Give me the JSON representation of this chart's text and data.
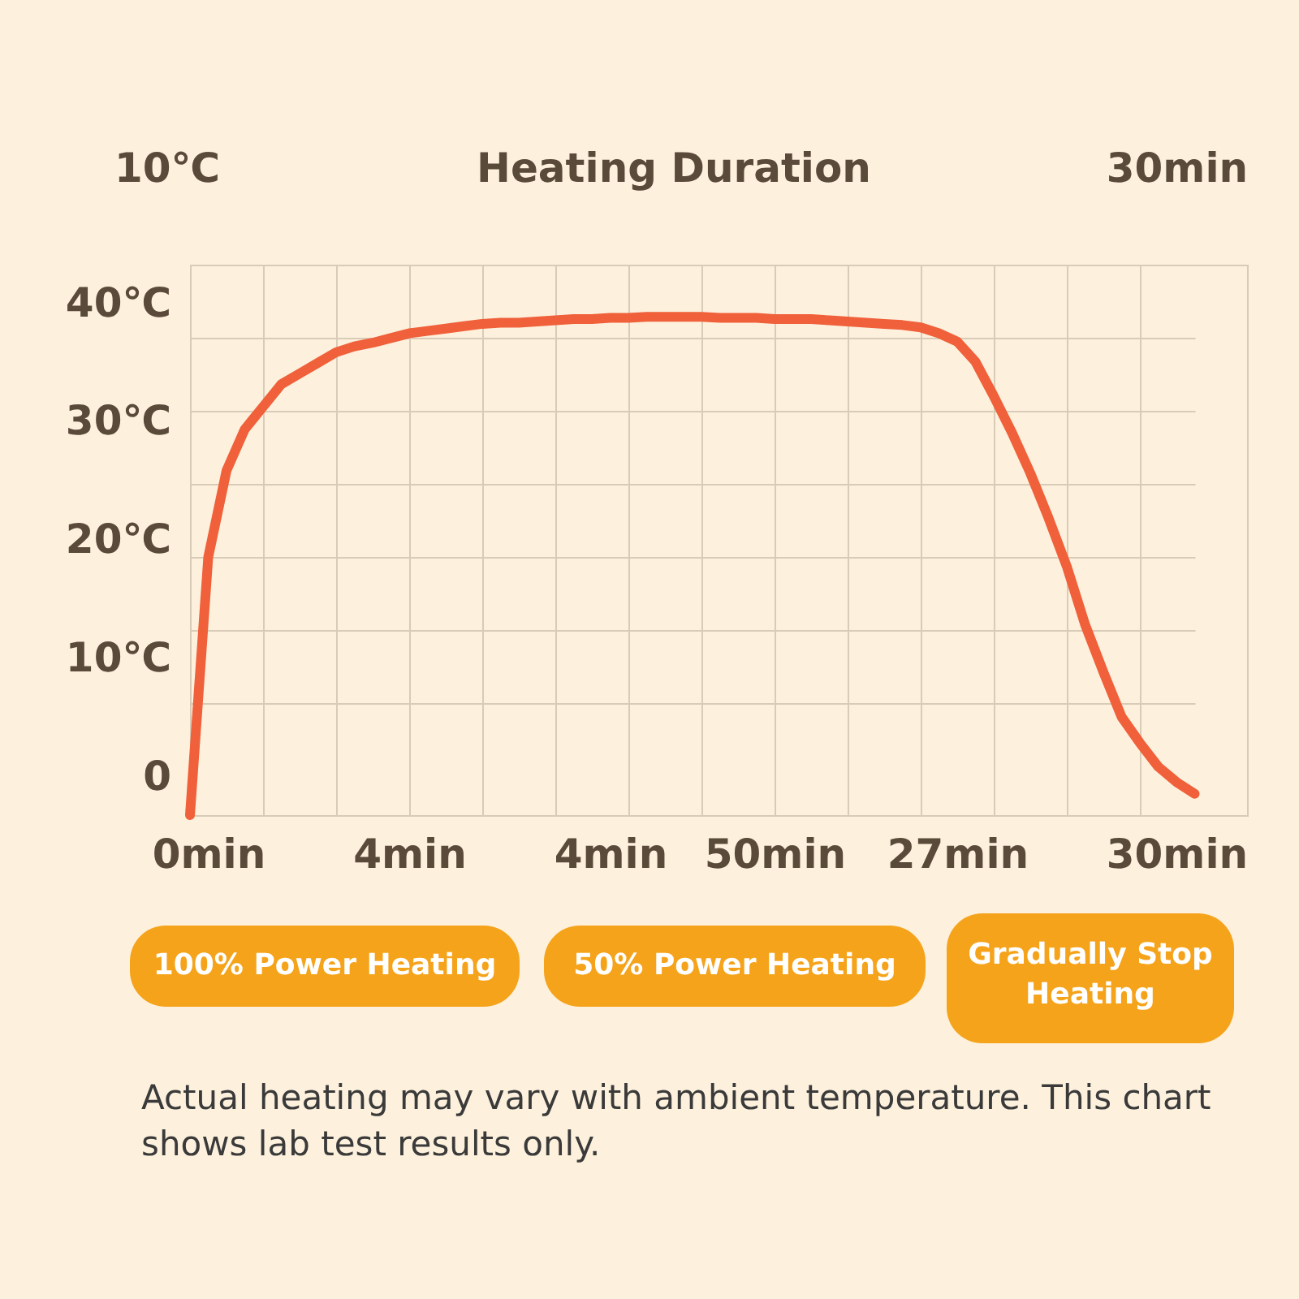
{
  "chart_data": {
    "type": "line",
    "title": "Heating Duration",
    "categories": [
      null,
      "0min",
      null,
      null,
      null,
      null,
      null,
      null,
      null,
      null,
      null,
      null,
      "4min",
      null,
      null,
      null,
      null,
      null,
      null,
      null,
      null,
      null,
      null,
      "4min",
      null,
      null,
      null,
      null,
      null,
      null,
      null,
      null,
      "50min",
      null,
      null,
      null,
      null,
      null,
      null,
      null,
      null,
      null,
      "27min",
      null,
      null,
      null,
      null,
      null,
      null,
      null,
      null,
      null,
      null,
      null,
      "30min",
      null
    ],
    "series": [
      {
        "color": "#f0603a",
        "values": [
          -3.3,
          18.5,
          25.8,
          29.3,
          31.2,
          33.1,
          34.0,
          34.9,
          35.8,
          36.3,
          36.6,
          37.0,
          37.4,
          37.6,
          37.8,
          38.0,
          38.2,
          38.3,
          38.3,
          38.4,
          38.5,
          38.6,
          38.6,
          38.7,
          38.7,
          38.8,
          38.8,
          38.8,
          38.8,
          38.7,
          38.7,
          38.7,
          38.6,
          38.6,
          38.6,
          38.5,
          38.4,
          38.3,
          38.2,
          38.1,
          37.9,
          37.4,
          36.7,
          35.0,
          32.1,
          29.0,
          25.6,
          21.8,
          17.7,
          12.8,
          8.8,
          5.0,
          2.8,
          0.8,
          -0.5,
          -1.5
        ]
      }
    ],
    "ylim": [
      -3.3,
      43.2
    ],
    "yticks": [
      {
        "value": 0,
        "label": "0"
      },
      {
        "value": 10,
        "label": "10℃"
      },
      {
        "value": 20,
        "label": "20℃"
      },
      {
        "value": 30,
        "label": "30℃"
      },
      {
        "value": 40,
        "label": "40℃"
      },
      {
        "value": 6.2,
        "label": null
      },
      {
        "value": 12.3,
        "label": null
      },
      {
        "value": 18.5,
        "label": null
      },
      {
        "value": 24.7,
        "label": null
      },
      {
        "value": 30.8,
        "label": null
      },
      {
        "value": 37.0,
        "label": null
      }
    ],
    "grid": true,
    "annotations": [
      "10℃",
      "30min",
      "100% Power Heating",
      "50% Power Heating",
      "Gradually Stop Heating",
      "Actual heating may vary with ambient temperature. This chart shows lab test results only."
    ]
  }
}
